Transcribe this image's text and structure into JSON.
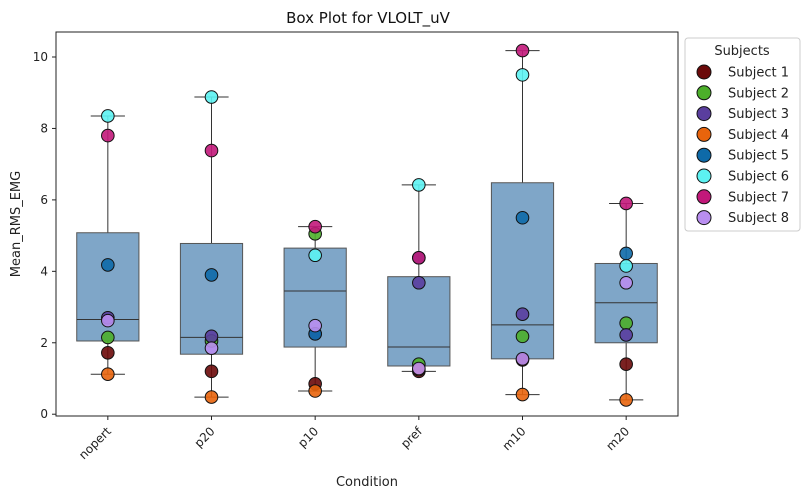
{
  "chart_data": {
    "type": "box",
    "title": "Box Plot for VLOLT_uV",
    "xlabel": "Condition",
    "ylabel": "Mean_RMS_EMG",
    "ylim": [
      -0.05,
      10.7
    ],
    "yticks": [
      0,
      2,
      4,
      6,
      8,
      10
    ],
    "categories": [
      "nopert",
      "p20",
      "p10",
      "pref",
      "m10",
      "m20"
    ],
    "box_color": "#5b8db8",
    "grid": false,
    "legend": {
      "title": "Subjects",
      "placement": "outside-right-top",
      "entries": [
        {
          "name": "Subject 1",
          "color": "#6b0a0a"
        },
        {
          "name": "Subject 2",
          "color": "#4caf2a"
        },
        {
          "name": "Subject 3",
          "color": "#5a3e9e"
        },
        {
          "name": "Subject 4",
          "color": "#e8640c"
        },
        {
          "name": "Subject 5",
          "color": "#0e6aa8"
        },
        {
          "name": "Subject 6",
          "color": "#5cf2f2"
        },
        {
          "name": "Subject 7",
          "color": "#c2187a"
        },
        {
          "name": "Subject 8",
          "color": "#b98ef0"
        }
      ]
    },
    "boxes": [
      {
        "category": "nopert",
        "whislo": 1.12,
        "q1": 2.05,
        "med": 2.65,
        "q3": 5.08,
        "whishi": 8.35
      },
      {
        "category": "p20",
        "whislo": 0.48,
        "q1": 1.68,
        "med": 2.15,
        "q3": 4.78,
        "whishi": 8.88
      },
      {
        "category": "p10",
        "whislo": 0.65,
        "q1": 1.88,
        "med": 3.45,
        "q3": 4.65,
        "whishi": 5.25
      },
      {
        "category": "pref",
        "whislo": 1.2,
        "q1": 1.35,
        "med": 1.88,
        "q3": 3.85,
        "whishi": 6.42
      },
      {
        "category": "m10",
        "whislo": 0.55,
        "q1": 1.55,
        "med": 2.5,
        "q3": 6.48,
        "whishi": 10.18
      },
      {
        "category": "m20",
        "whislo": 0.4,
        "q1": 2.0,
        "med": 3.12,
        "q3": 4.22,
        "whishi": 5.9
      }
    ],
    "subjects": [
      {
        "name": "Subject 1",
        "values": [
          1.72,
          1.2,
          0.85,
          1.2,
          1.52,
          1.4
        ]
      },
      {
        "name": "Subject 2",
        "values": [
          2.15,
          2.05,
          5.05,
          1.4,
          2.18,
          2.55
        ]
      },
      {
        "name": "Subject 3",
        "values": [
          2.7,
          2.18,
          2.25,
          3.68,
          2.8,
          2.22
        ]
      },
      {
        "name": "Subject 4",
        "values": [
          1.12,
          0.48,
          0.65,
          1.25,
          0.55,
          0.4
        ]
      },
      {
        "name": "Subject 5",
        "values": [
          4.18,
          3.9,
          2.25,
          4.38,
          5.5,
          4.5
        ]
      },
      {
        "name": "Subject 6",
        "values": [
          8.35,
          8.88,
          4.45,
          6.42,
          9.5,
          4.15
        ]
      },
      {
        "name": "Subject 7",
        "values": [
          7.8,
          7.38,
          5.25,
          4.38,
          10.18,
          5.9
        ]
      },
      {
        "name": "Subject 8",
        "values": [
          2.62,
          1.85,
          2.48,
          1.28,
          1.55,
          3.68
        ]
      }
    ]
  }
}
